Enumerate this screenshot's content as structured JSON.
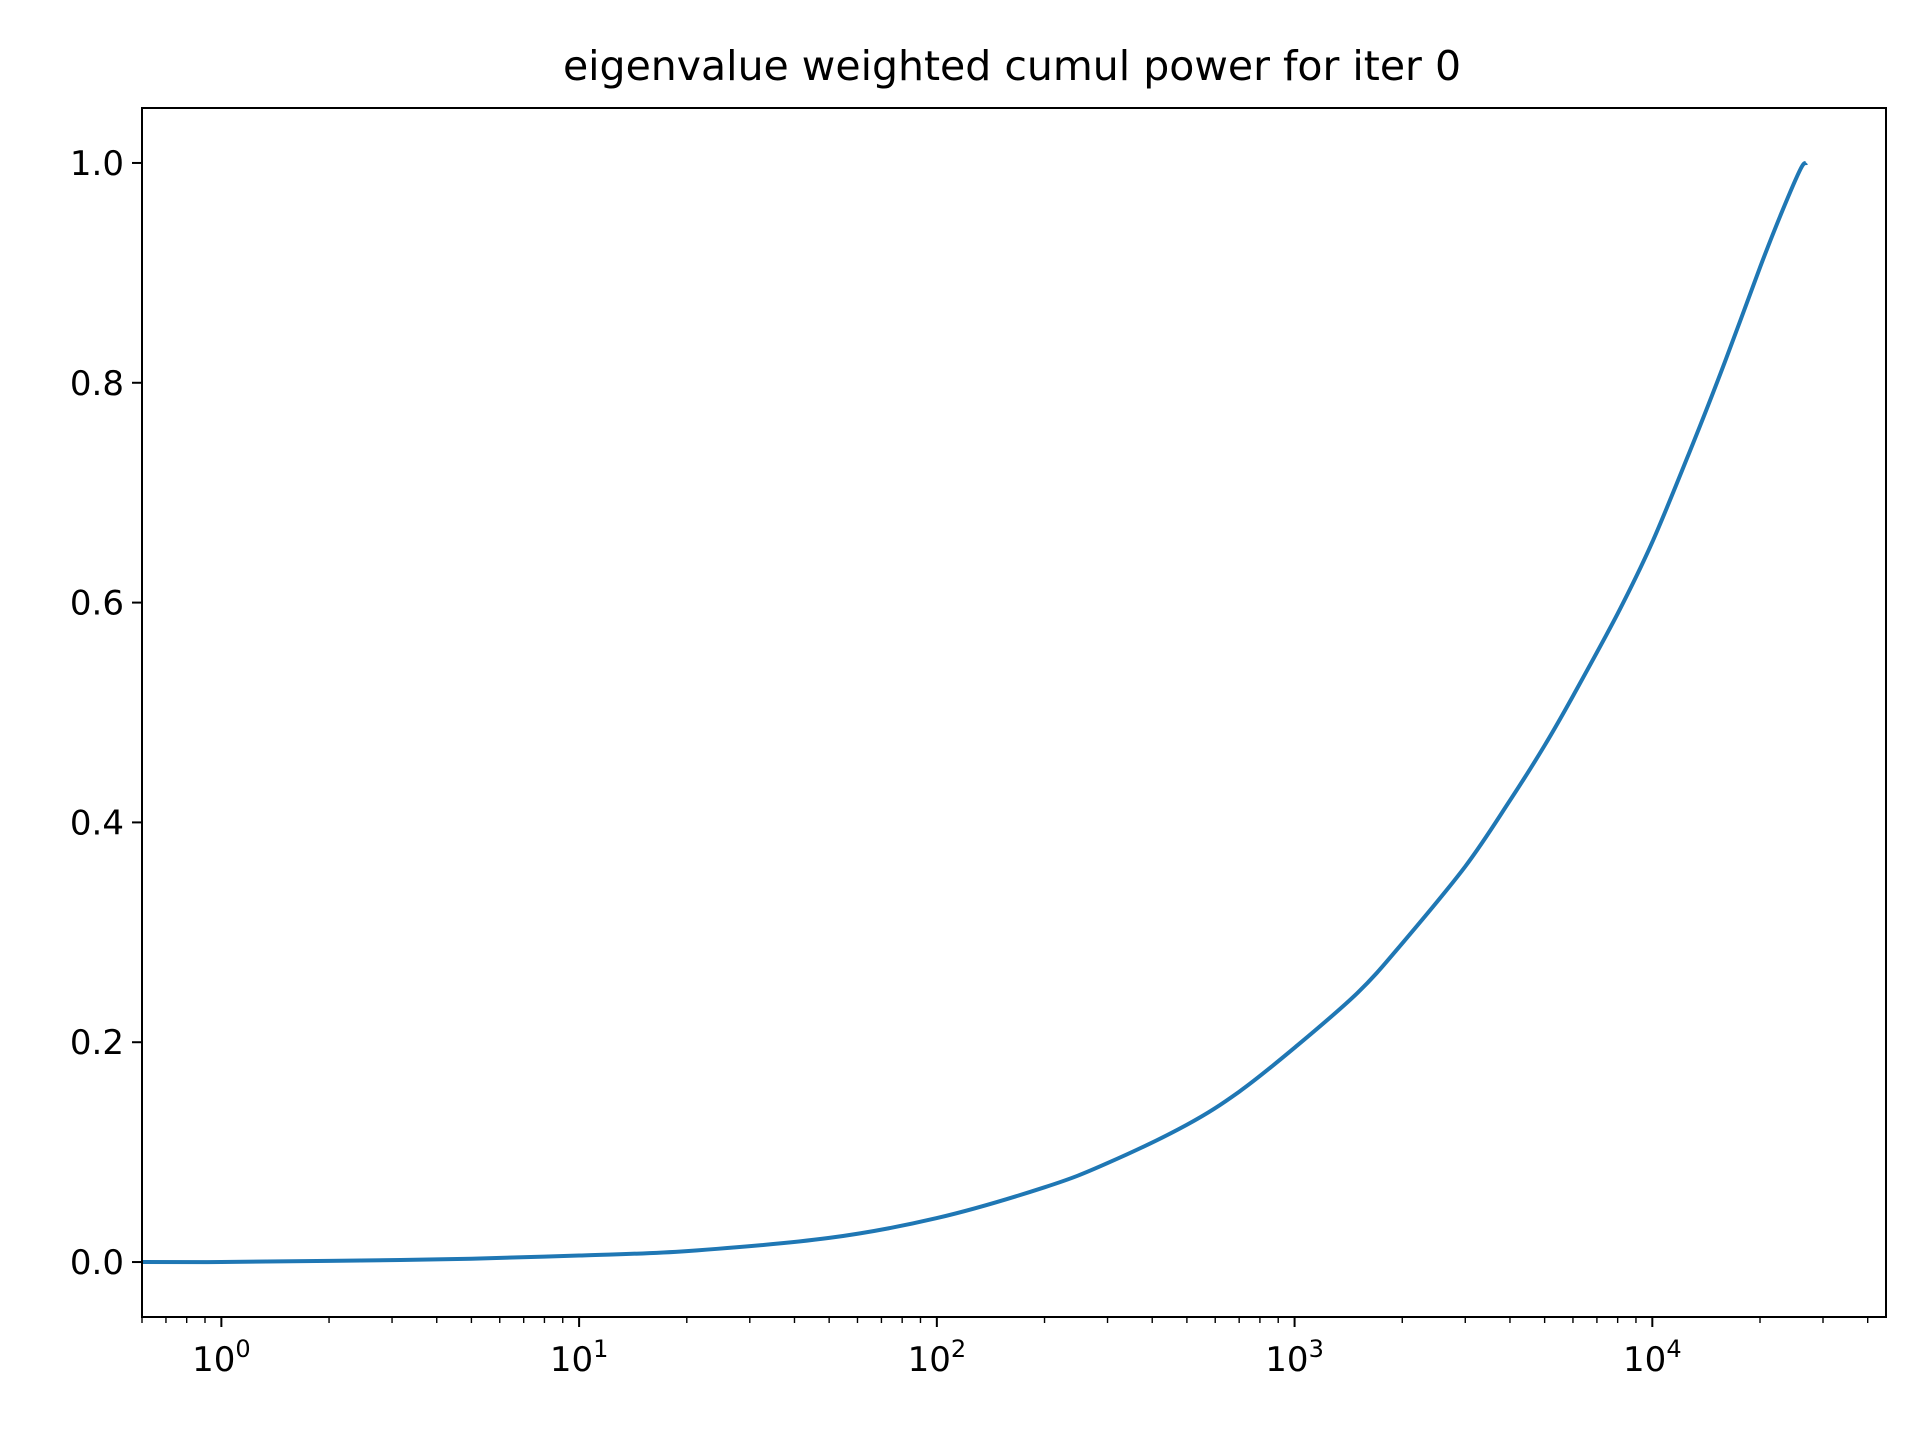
{
  "chart_data": {
    "type": "line",
    "title": "eigenvalue weighted cumul power for iter 0",
    "xlabel": "",
    "ylabel": "",
    "xscale": "log",
    "xlim": [
      0.6,
      45000
    ],
    "ylim": [
      -0.05,
      1.05
    ],
    "grid": false,
    "x_ticks": [
      {
        "base": "10",
        "exp": "0",
        "value": 1
      },
      {
        "base": "10",
        "exp": "1",
        "value": 10
      },
      {
        "base": "10",
        "exp": "2",
        "value": 100
      },
      {
        "base": "10",
        "exp": "3",
        "value": 1000
      },
      {
        "base": "10",
        "exp": "4",
        "value": 10000
      }
    ],
    "y_ticks": [
      "0.0",
      "0.2",
      "0.4",
      "0.6",
      "0.8",
      "1.0"
    ],
    "series": [
      {
        "color": "#1f77b4",
        "x": [
          0.6,
          1,
          2,
          5,
          10,
          20,
          50,
          100,
          200,
          300,
          500,
          700,
          1000,
          1500,
          2000,
          3000,
          4000,
          5000,
          6000,
          8000,
          10000,
          13000,
          16000,
          20000,
          23000,
          26000,
          27000
        ],
        "y": [
          0.0,
          0.0,
          0.001,
          0.003,
          0.006,
          0.01,
          0.022,
          0.04,
          0.068,
          0.09,
          0.125,
          0.155,
          0.195,
          0.245,
          0.29,
          0.36,
          0.42,
          0.47,
          0.515,
          0.59,
          0.655,
          0.745,
          0.82,
          0.905,
          0.955,
          0.995,
          1.0
        ]
      }
    ]
  }
}
